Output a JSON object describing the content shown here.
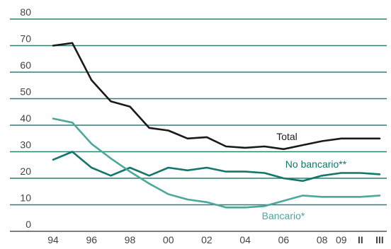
{
  "chart_data": {
    "type": "line",
    "title": "",
    "xlabel": "",
    "ylabel": "",
    "ylim": [
      0,
      80
    ],
    "yticks": [
      0,
      10,
      20,
      30,
      40,
      50,
      60,
      70,
      80
    ],
    "grid": "horizontal",
    "x_tick_labels": [
      "94",
      "96",
      "98",
      "00",
      "02",
      "04",
      "06",
      "08",
      "09",
      "II",
      "III"
    ],
    "x": [
      "1994",
      "1995",
      "1996",
      "1997",
      "1998",
      "1999",
      "2000",
      "2001",
      "2002",
      "2003",
      "2004",
      "2005",
      "2006",
      "2007",
      "2008",
      "2009",
      "II",
      "III"
    ],
    "series": [
      {
        "name": "Total",
        "color": "#1a1a1a",
        "values": [
          70,
          71,
          57,
          49,
          47,
          39,
          38,
          35,
          35.5,
          32,
          31.5,
          32,
          31,
          32.5,
          34,
          35,
          35,
          35
        ]
      },
      {
        "name": "No bancario**",
        "color": "#12776a",
        "values": [
          27,
          30,
          24,
          21,
          24,
          21,
          24,
          23,
          24,
          22.5,
          22.5,
          22,
          20,
          19,
          21,
          22,
          22,
          21.5
        ]
      },
      {
        "name": "Bancario*",
        "color": "#4ba89a",
        "values": [
          42.5,
          41,
          33,
          27.5,
          22.5,
          18,
          14,
          12,
          11,
          9,
          9,
          9.5,
          11.5,
          13.5,
          13,
          13,
          13,
          13.5
        ]
      }
    ]
  }
}
